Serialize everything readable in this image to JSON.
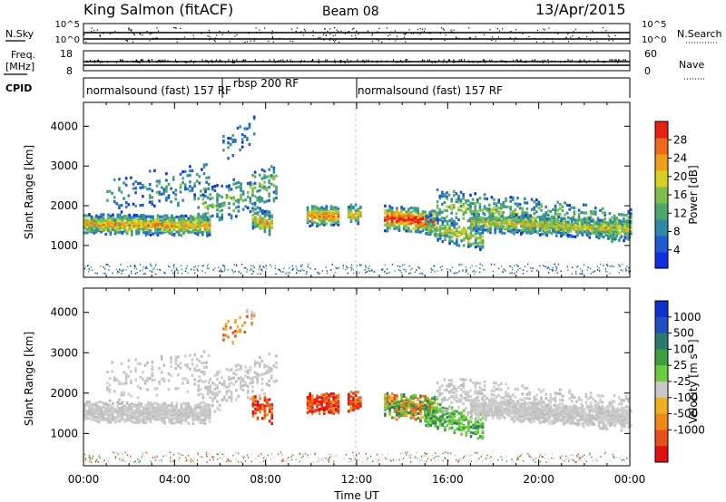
{
  "header": {
    "station": "King Salmon (fitACF)",
    "beam": "Beam 08",
    "date": "13/Apr/2015"
  },
  "summary_panels": {
    "noise": {
      "left_label": "N.Sky",
      "right_label": "N.Search",
      "left_ticks": [
        "10^5",
        "10^0"
      ],
      "right_ticks": [
        "10^5",
        "10^0"
      ]
    },
    "freq_nave": {
      "left_label": "Freq.",
      "left_unit": "[MHz]",
      "left_ticks": [
        "18",
        "8"
      ],
      "right_label": "Nave",
      "right_ticks": [
        "60",
        "0"
      ]
    },
    "cpid": {
      "label": "CPID",
      "programs": [
        {
          "name": "normalsound (fast) 157 RF",
          "start_hour": 0,
          "end_hour": 6.1
        },
        {
          "name": "rbsp 200 RF",
          "start_hour": 6.1,
          "end_hour": 12.0
        },
        {
          "name": "normalsound (fast) 157 RF",
          "start_hour": 12.0,
          "end_hour": 24.0
        }
      ]
    }
  },
  "chart_data": [
    {
      "type": "heatmap",
      "parameter": "power",
      "ylabel": "Slant Range [km]",
      "xlim": [
        0,
        24
      ],
      "ylim": [
        200,
        4600
      ],
      "yticks": [
        1000,
        2000,
        3000,
        4000
      ],
      "colorbar": {
        "label": "Power [dB]",
        "ticks": [
          4,
          8,
          12,
          16,
          20,
          24,
          28
        ],
        "range": [
          0,
          32
        ],
        "colors": [
          "#1030e0",
          "#1f5ad0",
          "#2e8aa8",
          "#4aa86a",
          "#7cc04a",
          "#d8d020",
          "#f0a018",
          "#f06818",
          "#e82010"
        ]
      }
    },
    {
      "type": "heatmap",
      "parameter": "velocity",
      "xlabel": "Time UT",
      "xticks": [
        "00:00",
        "04:00",
        "08:00",
        "12:00",
        "16:00",
        "20:00",
        "00:00"
      ],
      "ylabel": "Slant Range [km]",
      "xlim": [
        0,
        24
      ],
      "ylim": [
        200,
        4600
      ],
      "yticks": [
        1000,
        2000,
        3000,
        4000
      ],
      "colorbar": {
        "label": "Velocity [m s⁻¹]",
        "ticks": [
          "1000",
          "500",
          "100",
          "25",
          "-25",
          "-100",
          "-500",
          "-1000"
        ],
        "colors": [
          "#1030d0",
          "#2050c0",
          "#2a7a6a",
          "#3aa040",
          "#6ccc3c",
          "#c8c8c8",
          "#f0b020",
          "#f08818",
          "#e85018",
          "#e01010"
        ]
      }
    }
  ]
}
